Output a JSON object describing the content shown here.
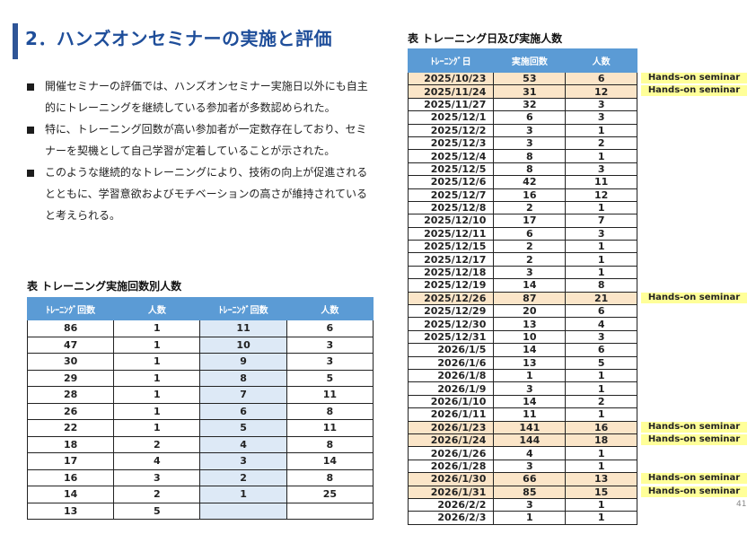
{
  "title": "2．ハンズオンセミナーの実施と評価",
  "bullets": [
    "開催セミナーの評価では、ハンズオンセミナー実施日以外にも自主的にトレーニングを継続している参加者が多数認められた。",
    "特に、トレーニング回数が高い参加者が一定数存在しており、セミナーを契機として自己学習が定着していることが示された。",
    "このような継続的なトレーニングにより、技術の向上が促進されるとともに、学習意欲およびモチベーションの高さが維持されていると考えられる。"
  ],
  "table1": {
    "caption": "表 トレーニング実施回数別人数",
    "headers": [
      "ﾄﾚｰﾆﾝｸﾞ回数",
      "人数",
      "ﾄﾚｰﾆﾝｸﾞ回数",
      "人数"
    ],
    "rows": [
      [
        "86",
        "1",
        "11",
        "6"
      ],
      [
        "47",
        "1",
        "10",
        "3"
      ],
      [
        "30",
        "1",
        "9",
        "3"
      ],
      [
        "29",
        "1",
        "8",
        "5"
      ],
      [
        "28",
        "1",
        "7",
        "11"
      ],
      [
        "26",
        "1",
        "6",
        "8"
      ],
      [
        "22",
        "1",
        "5",
        "11"
      ],
      [
        "18",
        "2",
        "4",
        "8"
      ],
      [
        "17",
        "4",
        "3",
        "14"
      ],
      [
        "16",
        "3",
        "2",
        "8"
      ],
      [
        "14",
        "2",
        "1",
        "25"
      ],
      [
        "13",
        "5",
        "",
        ""
      ]
    ]
  },
  "table2": {
    "caption": "表 トレーニング日及び実施人数",
    "headers": [
      "ﾄﾚｰﾆﾝｸﾞ日",
      "実施回数",
      "人数"
    ],
    "seminar_label": "Hands-on seminar",
    "rows": [
      {
        "date": "2025/10/23",
        "count": "53",
        "people": "6",
        "seminar": true
      },
      {
        "date": "2025/11/24",
        "count": "31",
        "people": "12",
        "seminar": true
      },
      {
        "date": "2025/11/27",
        "count": "32",
        "people": "3",
        "seminar": false
      },
      {
        "date": "2025/12/1",
        "count": "6",
        "people": "3",
        "seminar": false
      },
      {
        "date": "2025/12/2",
        "count": "3",
        "people": "1",
        "seminar": false
      },
      {
        "date": "2025/12/3",
        "count": "3",
        "people": "2",
        "seminar": false
      },
      {
        "date": "2025/12/4",
        "count": "8",
        "people": "1",
        "seminar": false
      },
      {
        "date": "2025/12/5",
        "count": "8",
        "people": "3",
        "seminar": false
      },
      {
        "date": "2025/12/6",
        "count": "42",
        "people": "11",
        "seminar": false
      },
      {
        "date": "2025/12/7",
        "count": "16",
        "people": "12",
        "seminar": false
      },
      {
        "date": "2025/12/8",
        "count": "2",
        "people": "1",
        "seminar": false
      },
      {
        "date": "2025/12/10",
        "count": "17",
        "people": "7",
        "seminar": false
      },
      {
        "date": "2025/12/11",
        "count": "6",
        "people": "3",
        "seminar": false
      },
      {
        "date": "2025/12/15",
        "count": "2",
        "people": "1",
        "seminar": false
      },
      {
        "date": "2025/12/17",
        "count": "2",
        "people": "1",
        "seminar": false
      },
      {
        "date": "2025/12/18",
        "count": "3",
        "people": "1",
        "seminar": false
      },
      {
        "date": "2025/12/19",
        "count": "14",
        "people": "8",
        "seminar": false
      },
      {
        "date": "2025/12/26",
        "count": "87",
        "people": "21",
        "seminar": true
      },
      {
        "date": "2025/12/29",
        "count": "20",
        "people": "6",
        "seminar": false
      },
      {
        "date": "2025/12/30",
        "count": "13",
        "people": "4",
        "seminar": false
      },
      {
        "date": "2025/12/31",
        "count": "10",
        "people": "3",
        "seminar": false
      },
      {
        "date": "2026/1/5",
        "count": "14",
        "people": "6",
        "seminar": false
      },
      {
        "date": "2026/1/6",
        "count": "13",
        "people": "5",
        "seminar": false
      },
      {
        "date": "2026/1/8",
        "count": "1",
        "people": "1",
        "seminar": false
      },
      {
        "date": "2026/1/9",
        "count": "3",
        "people": "1",
        "seminar": false
      },
      {
        "date": "2026/1/10",
        "count": "14",
        "people": "2",
        "seminar": false
      },
      {
        "date": "2026/1/11",
        "count": "11",
        "people": "1",
        "seminar": false
      },
      {
        "date": "2026/1/23",
        "count": "141",
        "people": "16",
        "seminar": true
      },
      {
        "date": "2026/1/24",
        "count": "144",
        "people": "18",
        "seminar": true
      },
      {
        "date": "2026/1/26",
        "count": "4",
        "people": "1",
        "seminar": false
      },
      {
        "date": "2026/1/28",
        "count": "3",
        "people": "1",
        "seminar": false
      },
      {
        "date": "2026/1/30",
        "count": "66",
        "people": "13",
        "seminar": true
      },
      {
        "date": "2026/1/31",
        "count": "85",
        "people": "15",
        "seminar": true
      },
      {
        "date": "2026/2/2",
        "count": "3",
        "people": "1",
        "seminar": false
      },
      {
        "date": "2026/2/3",
        "count": "1",
        "people": "1",
        "seminar": false
      }
    ]
  },
  "page_number": "41",
  "colors": {
    "title": "#1f4e9a",
    "header": "#5b9bd5",
    "highlight_row": "#fbe5c8",
    "seminar_tag": "#ffff99",
    "alt_column": "#dde9f6"
  }
}
